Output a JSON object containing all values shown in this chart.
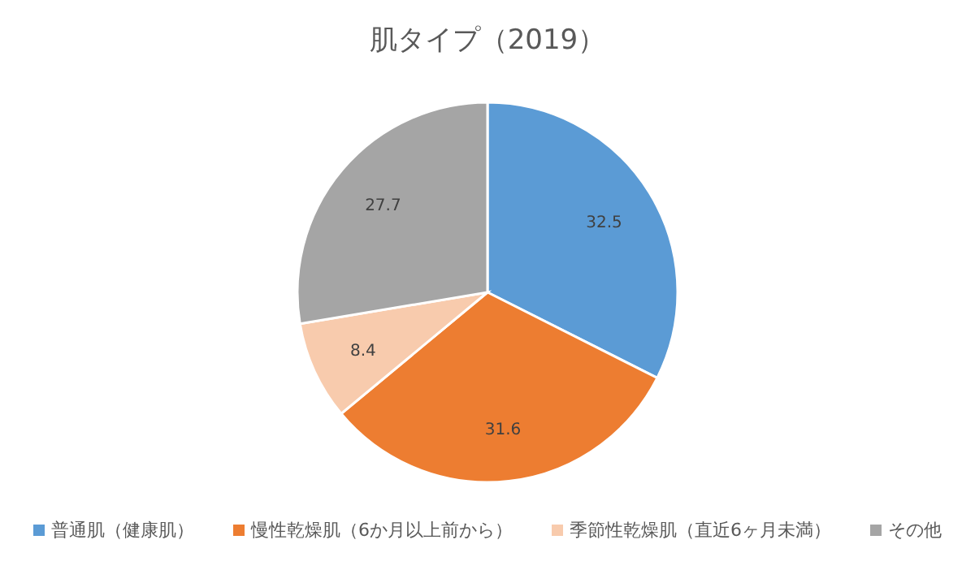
{
  "chart_data": {
    "type": "pie",
    "title": "肌タイプ（2019）",
    "categories": [
      "普通肌（健康肌）",
      "慢性乾燥肌（6か月以上前から）",
      "季節性乾燥肌（直近6ヶ月未満）",
      "その他"
    ],
    "values": [
      32.5,
      31.6,
      8.4,
      27.7
    ],
    "colors": [
      "#5b9bd5",
      "#ed7d31",
      "#f8cbad",
      "#a5a5a5"
    ],
    "data_labels": true,
    "legend": "bottom"
  }
}
